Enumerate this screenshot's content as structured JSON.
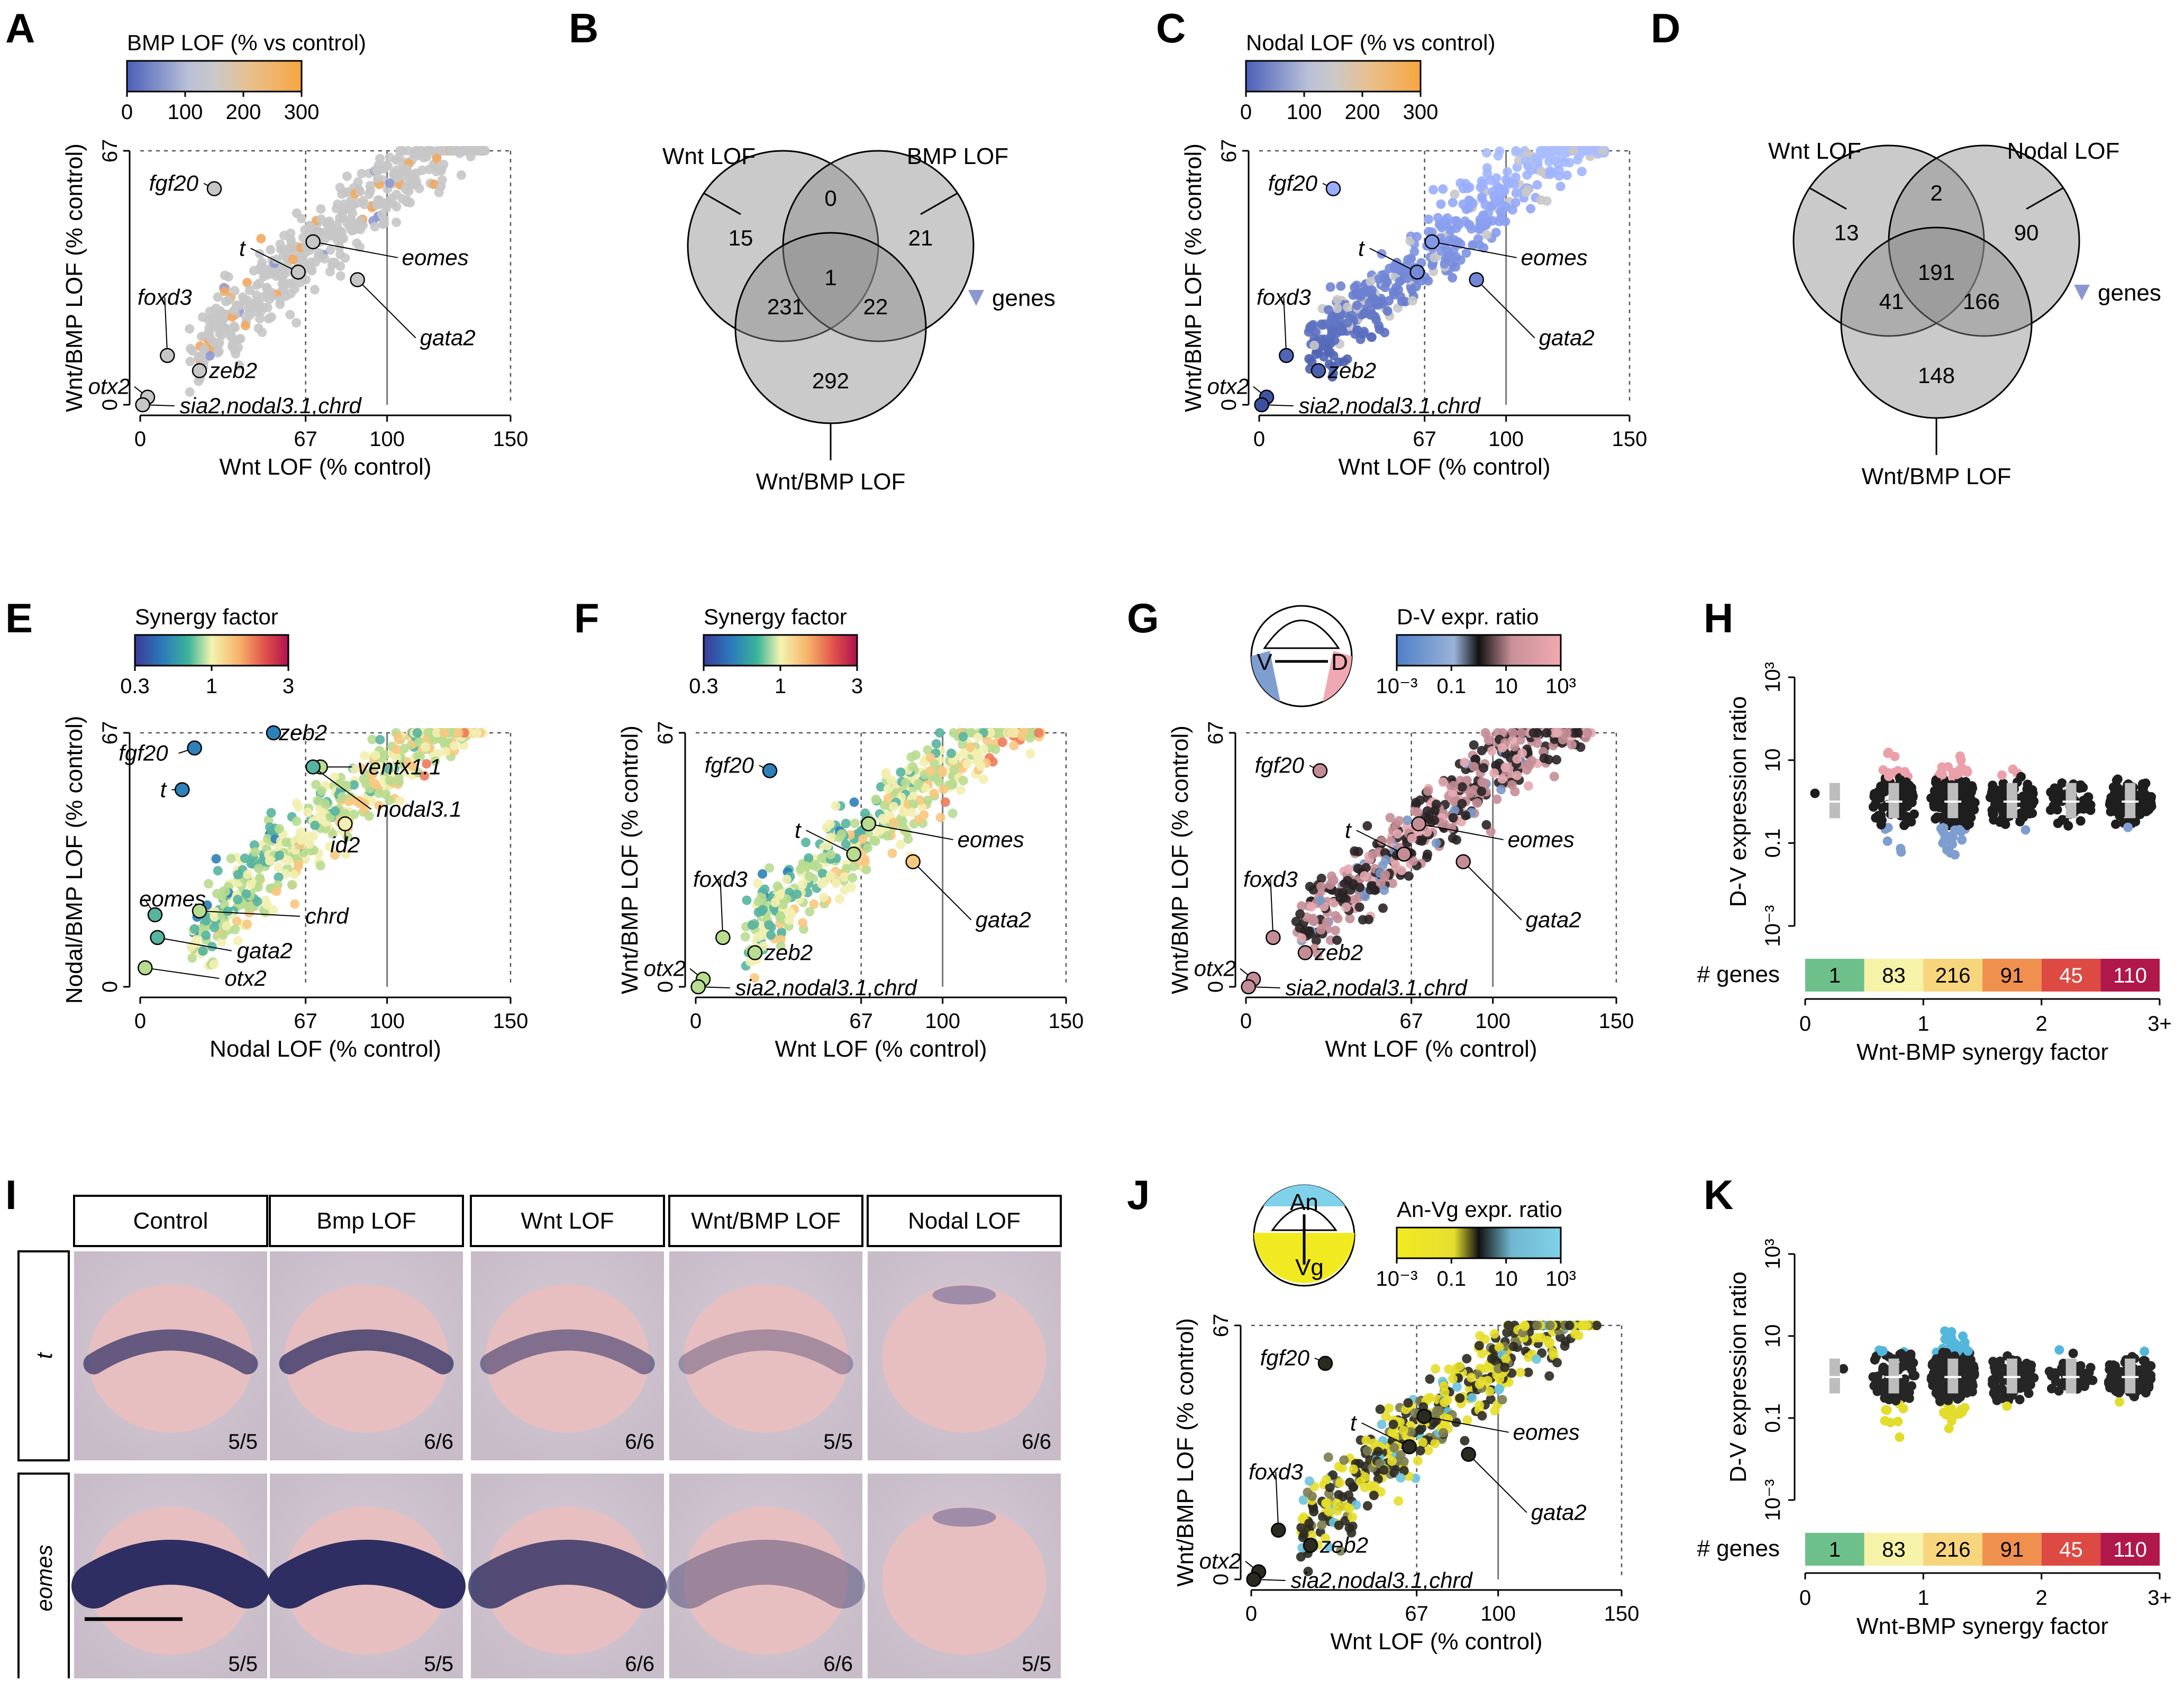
{
  "panels": {
    "A": {
      "letter": "A",
      "cbar_title": "BMP LOF (% vs control)",
      "cbar_ticks": [
        "0",
        "100",
        "200",
        "300"
      ],
      "xlabel": "Wnt LOF (% control)",
      "ylabel": "Wnt/BMP LOF (% control)"
    },
    "B": {
      "letter": "B",
      "sets": [
        "Wnt LOF",
        "BMP LOF",
        "Wnt/BMP LOF"
      ],
      "counts": {
        "a_only": "15",
        "ab": "0",
        "b_only": "21",
        "ac": "231",
        "abc": "1",
        "bc": "22",
        "c_only": "292"
      },
      "legend": "genes"
    },
    "C": {
      "letter": "C",
      "cbar_title": "Nodal LOF (% vs control)",
      "cbar_ticks": [
        "0",
        "100",
        "200",
        "300"
      ],
      "xlabel": "Wnt LOF (% control)",
      "ylabel": "Wnt/BMP LOF (% control)"
    },
    "D": {
      "letter": "D",
      "sets": [
        "Wnt LOF",
        "Nodal LOF",
        "Wnt/BMP LOF"
      ],
      "counts": {
        "a_only": "13",
        "ab": "2",
        "b_only": "90",
        "ac": "41",
        "abc": "191",
        "bc": "166",
        "c_only": "148"
      },
      "legend": "genes"
    },
    "E": {
      "letter": "E",
      "cbar_title": "Synergy factor",
      "cbar_ticks": [
        "0.3",
        "1",
        "3"
      ],
      "xlabel": "Nodal LOF (% control)",
      "ylabel": "Nodal/BMP LOF (% control)"
    },
    "F": {
      "letter": "F",
      "cbar_title": "Synergy factor",
      "cbar_ticks": [
        "0.3",
        "1",
        "3"
      ],
      "xlabel": "Wnt LOF (% control)",
      "ylabel": "Wnt/BMP LOF (% control)"
    },
    "G": {
      "letter": "G",
      "cbar_title": "D-V expr. ratio",
      "cbar_ticks": [
        "10⁻³",
        "0.1",
        "10",
        "10³"
      ],
      "embryo_labels": [
        "V",
        "D"
      ],
      "xlabel": "Wnt LOF (% control)",
      "ylabel": "Wnt/BMP LOF (% control)"
    },
    "H": {
      "letter": "H",
      "ylabel": "D-V expression ratio",
      "yticks": [
        "10³",
        "10",
        "0.1",
        "10⁻³"
      ],
      "xlabel": "Wnt-BMP synergy factor",
      "xticks": [
        "0",
        "1",
        "2",
        "3+"
      ],
      "genes_label": "# genes",
      "gene_counts": [
        "1",
        "83",
        "216",
        "91",
        "45",
        "110"
      ]
    },
    "I": {
      "letter": "I",
      "columns": [
        "Control",
        "Bmp LOF",
        "Wnt LOF",
        "Wnt/BMP LOF",
        "Nodal LOF"
      ],
      "rows": [
        "t",
        "eomes"
      ],
      "fractions": [
        [
          "5/5",
          "6/6",
          "6/6",
          "5/5",
          "6/6"
        ],
        [
          "5/5",
          "5/5",
          "6/6",
          "6/6",
          "5/5"
        ]
      ]
    },
    "J": {
      "letter": "J",
      "cbar_title": "An-Vg expr. ratio",
      "cbar_ticks": [
        "10⁻³",
        "0.1",
        "10",
        "10³"
      ],
      "embryo_labels": [
        "An",
        "Vg"
      ],
      "xlabel": "Wnt LOF (% control)",
      "ylabel": "Wnt/BMP LOF (% control)"
    },
    "K": {
      "letter": "K",
      "ylabel": "D-V expression ratio",
      "yticks": [
        "10³",
        "10",
        "0.1",
        "10⁻³"
      ],
      "xlabel": "Wnt-BMP synergy factor",
      "xticks": [
        "0",
        "1",
        "2",
        "3+"
      ],
      "genes_label": "# genes",
      "gene_counts": [
        "1",
        "83",
        "216",
        "91",
        "45",
        "110"
      ]
    }
  },
  "chart_data": [
    {
      "panel": "A",
      "type": "scatter",
      "x_ticks": [
        "0",
        "67",
        "100",
        "150"
      ],
      "y_ticks": [
        "0",
        "67"
      ],
      "xlim": [
        0,
        150
      ],
      "ylim": [
        0,
        67
      ],
      "labels": [
        {
          "text": "fgf20",
          "x": 30,
          "y": 57
        },
        {
          "text": "t",
          "x": 64,
          "y": 35
        },
        {
          "text": "eomes",
          "x": 70,
          "y": 43
        },
        {
          "text": "gata2",
          "x": 88,
          "y": 33
        },
        {
          "text": "foxd3",
          "x": 11,
          "y": 13
        },
        {
          "text": "zeb2",
          "x": 24,
          "y": 9
        },
        {
          "text": "otx2",
          "x": 3,
          "y": 2
        },
        {
          "text": "sia2,nodal3.1,chrd",
          "x": 1,
          "y": 0
        }
      ]
    },
    {
      "panel": "C",
      "type": "scatter",
      "x_ticks": [
        "0",
        "67",
        "100",
        "150"
      ],
      "y_ticks": [
        "0",
        "67"
      ],
      "xlim": [
        0,
        150
      ],
      "ylim": [
        0,
        67
      ],
      "labels": [
        {
          "text": "fgf20",
          "x": 30,
          "y": 57
        },
        {
          "text": "t",
          "x": 64,
          "y": 35
        },
        {
          "text": "eomes",
          "x": 70,
          "y": 43
        },
        {
          "text": "gata2",
          "x": 88,
          "y": 33
        },
        {
          "text": "foxd3",
          "x": 11,
          "y": 13
        },
        {
          "text": "zeb2",
          "x": 24,
          "y": 9
        },
        {
          "text": "otx2",
          "x": 3,
          "y": 2
        },
        {
          "text": "sia2,nodal3.1,chrd",
          "x": 1,
          "y": 0
        }
      ]
    },
    {
      "panel": "E",
      "type": "scatter",
      "x_ticks": [
        "0",
        "67",
        "100",
        "150"
      ],
      "y_ticks": [
        "0",
        "67"
      ],
      "xlim": [
        0,
        150
      ],
      "ylim": [
        0,
        67
      ],
      "labels": [
        {
          "text": "zeb2",
          "x": 54,
          "y": 67
        },
        {
          "text": "fgf20",
          "x": 22,
          "y": 63
        },
        {
          "text": "ventx1.1",
          "x": 73,
          "y": 58
        },
        {
          "text": "nodal3.1",
          "x": 70,
          "y": 58
        },
        {
          "text": "t",
          "x": 17,
          "y": 52
        },
        {
          "text": "id2",
          "x": 83,
          "y": 43
        },
        {
          "text": "eomes",
          "x": 6,
          "y": 19
        },
        {
          "text": "chrd",
          "x": 24,
          "y": 20
        },
        {
          "text": "gata2",
          "x": 7,
          "y": 13
        },
        {
          "text": "otx2",
          "x": 2,
          "y": 5
        }
      ]
    },
    {
      "panel": "F",
      "type": "scatter",
      "x_ticks": [
        "0",
        "67",
        "100",
        "150"
      ],
      "y_ticks": [
        "0",
        "67"
      ],
      "xlim": [
        0,
        150
      ],
      "ylim": [
        0,
        67
      ],
      "labels": [
        {
          "text": "fgf20",
          "x": 30,
          "y": 57
        },
        {
          "text": "t",
          "x": 64,
          "y": 35
        },
        {
          "text": "eomes",
          "x": 70,
          "y": 43
        },
        {
          "text": "gata2",
          "x": 88,
          "y": 33
        },
        {
          "text": "foxd3",
          "x": 11,
          "y": 13
        },
        {
          "text": "zeb2",
          "x": 24,
          "y": 9
        },
        {
          "text": "otx2",
          "x": 3,
          "y": 2
        },
        {
          "text": "sia2,nodal3.1,chrd",
          "x": 1,
          "y": 0
        }
      ]
    },
    {
      "panel": "G",
      "type": "scatter",
      "x_ticks": [
        "0",
        "67",
        "100",
        "150"
      ],
      "y_ticks": [
        "0",
        "67"
      ],
      "xlim": [
        0,
        150
      ],
      "ylim": [
        0,
        67
      ],
      "labels": [
        {
          "text": "fgf20",
          "x": 30,
          "y": 57
        },
        {
          "text": "t",
          "x": 64,
          "y": 35
        },
        {
          "text": "eomes",
          "x": 70,
          "y": 43
        },
        {
          "text": "gata2",
          "x": 88,
          "y": 33
        },
        {
          "text": "foxd3",
          "x": 11,
          "y": 13
        },
        {
          "text": "zeb2",
          "x": 24,
          "y": 9
        },
        {
          "text": "otx2",
          "x": 3,
          "y": 2
        },
        {
          "text": "sia2,nodal3.1,chrd",
          "x": 1,
          "y": 0
        }
      ]
    },
    {
      "panel": "J",
      "type": "scatter",
      "x_ticks": [
        "0",
        "67",
        "100",
        "150"
      ],
      "y_ticks": [
        "0",
        "67"
      ],
      "xlim": [
        0,
        150
      ],
      "ylim": [
        0,
        67
      ],
      "labels": [
        {
          "text": "fgf20",
          "x": 30,
          "y": 57
        },
        {
          "text": "t",
          "x": 64,
          "y": 35
        },
        {
          "text": "eomes",
          "x": 70,
          "y": 43
        },
        {
          "text": "gata2",
          "x": 88,
          "y": 33
        },
        {
          "text": "foxd3",
          "x": 11,
          "y": 13
        },
        {
          "text": "zeb2",
          "x": 24,
          "y": 9
        },
        {
          "text": "otx2",
          "x": 3,
          "y": 2
        },
        {
          "text": "sia2,nodal3.1,chrd",
          "x": 1,
          "y": 0
        }
      ]
    },
    {
      "panel": "H",
      "type": "scatter",
      "categories": [
        "1",
        "83",
        "216",
        "91",
        "45",
        "110"
      ],
      "bin_edges": [
        "0",
        "0.5",
        "1",
        "1.5",
        "2",
        "2.5",
        "3+"
      ],
      "ylim": [
        "10⁻³",
        "10³"
      ],
      "y_scale": "log"
    },
    {
      "panel": "K",
      "type": "scatter",
      "categories": [
        "1",
        "83",
        "216",
        "91",
        "45",
        "110"
      ],
      "bin_edges": [
        "0",
        "0.5",
        "1",
        "1.5",
        "2",
        "2.5",
        "3+"
      ],
      "ylim": [
        "10⁻³",
        "10³"
      ],
      "y_scale": "log"
    }
  ]
}
